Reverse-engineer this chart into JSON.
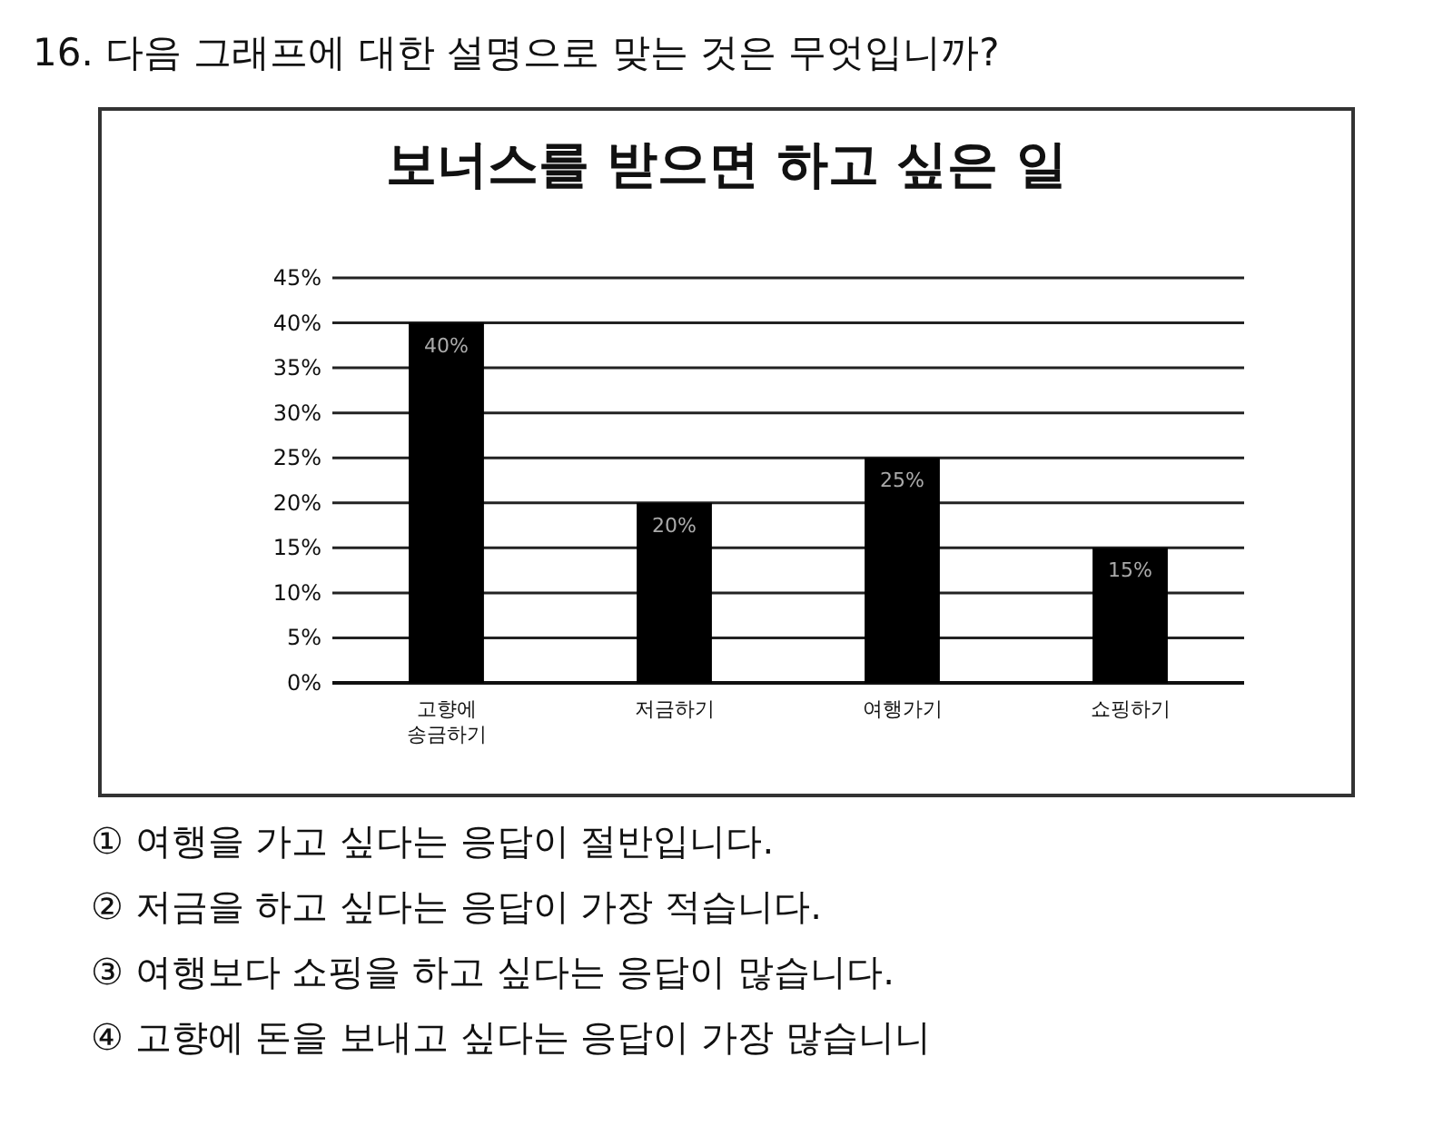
{
  "chart_data": {
    "type": "bar",
    "title": "보너스를 받으면 하고 싶은 일",
    "categories": [
      "고향에\n송금하기",
      "저금하기",
      "여행가기",
      "쇼핑하기"
    ],
    "values": [
      40,
      20,
      25,
      15
    ],
    "color": "#000000",
    "value_labels": [
      "40%",
      "20%",
      "25%",
      "15%"
    ],
    "ylim": [
      0,
      45
    ],
    "yticks": [
      {
        "value": 0,
        "label": "0%"
      },
      {
        "value": 5,
        "label": "5%"
      },
      {
        "value": 10,
        "label": "10%"
      },
      {
        "value": 15,
        "label": "15%"
      },
      {
        "value": 20,
        "label": "20%"
      },
      {
        "value": 25,
        "label": "25%"
      },
      {
        "value": 30,
        "label": "30%"
      },
      {
        "value": 35,
        "label": "35%"
      },
      {
        "value": 40,
        "label": "40%"
      },
      {
        "value": 45,
        "label": "45%"
      }
    ],
    "grid": "y",
    "annotations": [
      "16. 다음 그래프에 대한 설명으로 맞는 것은 무엇입니까?",
      "① 여행을 가고 싶다는 응답이 절반입니다.",
      "② 저금을 하고 싶다는 응답이 가장 적습니다.",
      "③ 여행보다 쇼핑을 하고 싶다는 응답이 많습니다.",
      "④ 고향에 돈을 보내고 싶다는 응답이 가장 많습니니"
    ]
  }
}
